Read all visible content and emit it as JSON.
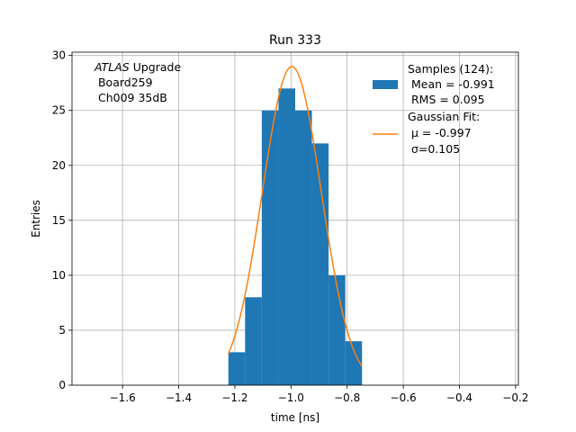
{
  "chart_data": {
    "type": "bar",
    "title": "Run 333",
    "xlabel": "time [ns]",
    "ylabel": "Entries",
    "xlim": [
      -1.78,
      -0.19
    ],
    "ylim": [
      0,
      30.3
    ],
    "xticks": [
      -1.6,
      -1.4,
      -1.2,
      -1.0,
      -0.8,
      -0.6,
      -0.4,
      -0.2
    ],
    "xtick_labels": [
      "−1.6",
      "−1.4",
      "−1.2",
      "−1.0",
      "−0.8",
      "−0.6",
      "−0.4",
      "−0.2"
    ],
    "yticks": [
      0,
      5,
      10,
      15,
      20,
      25,
      30
    ],
    "ytick_labels": [
      "0",
      "5",
      "10",
      "15",
      "20",
      "25",
      "30"
    ],
    "grid": true,
    "legend_position": "top-right",
    "colors": {
      "histogram": "#1f77b4",
      "fit": "#ff7f0e"
    },
    "histogram": {
      "bin_edges": [
        -1.223,
        -1.1635,
        -1.104,
        -1.0445,
        -0.985,
        -0.9255,
        -0.866,
        -0.8065,
        -0.747
      ],
      "counts": [
        3,
        8,
        25,
        27,
        25,
        22,
        10,
        4
      ]
    },
    "fit": {
      "type": "gaussian",
      "amplitude": 29,
      "mu": -0.997,
      "sigma": 0.105,
      "x_range": [
        -1.223,
        -0.747
      ]
    },
    "legend": [
      {
        "kind": "patch",
        "lines": [
          "Samples (124):",
          " Mean = -0.991",
          " RMS = 0.095"
        ]
      },
      {
        "kind": "line",
        "lines": [
          "Gaussian Fit:",
          " μ = -0.997",
          " σ=0.105"
        ]
      }
    ],
    "annotation": {
      "atlas": "ATLAS",
      "upgrade": " Upgrade",
      "lines": [
        " Board259",
        " Ch009 35dB"
      ]
    }
  }
}
